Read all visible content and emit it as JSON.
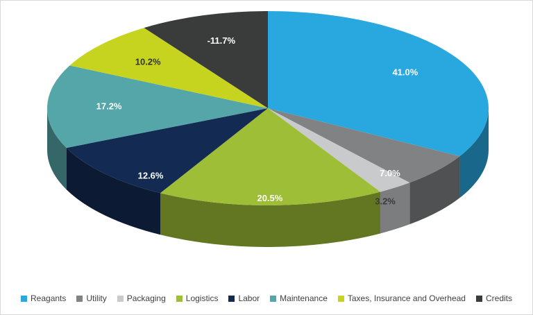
{
  "page": {
    "background": "#FFFFFF",
    "border_color": "#D9D9D9"
  },
  "legend": {
    "text_color": "#404040",
    "position": "bottom"
  },
  "chart_data": {
    "type": "pie",
    "effect": "3d",
    "title": "",
    "legend_position": "bottom",
    "slice_order": "clockwise_from_top",
    "categories": [
      "Reagants",
      "Utility",
      "Packaging",
      "Logistics",
      "Labor",
      "Maintenance",
      "Taxes, Insurance and Overhead",
      "Credits"
    ],
    "values": [
      41.0,
      7.0,
      3.2,
      20.5,
      12.6,
      17.2,
      10.2,
      -11.7
    ],
    "data_labels": [
      "41.0%",
      "7.0%",
      "3.2%",
      "20.5%",
      "12.6%",
      "17.2%",
      "10.2%",
      "-11.7%"
    ],
    "colors": [
      "#29A8E0",
      "#808284",
      "#C8CACC",
      "#9FBE37",
      "#132B52",
      "#55A6A8",
      "#C6D420",
      "#3A3C3C"
    ],
    "label_colors": [
      "#FFFFFF",
      "#FFFFFF",
      "#3A3A3A",
      "#FFFFFF",
      "#FFFFFF",
      "#FFFFFF",
      "#333333",
      "#FFFFFF"
    ]
  }
}
